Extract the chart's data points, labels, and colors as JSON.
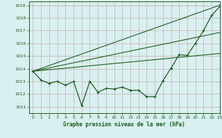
{
  "title": "Graphe pression niveau de la mer (hPa)",
  "bg_color": "#d8f0f0",
  "grid_color": "#c8b8b8",
  "line_color": "#1a5c1a",
  "xlim": [
    -0.5,
    23
  ],
  "ylim": [
    1010.5,
    1019.3
  ],
  "yticks": [
    1011,
    1012,
    1013,
    1014,
    1015,
    1016,
    1017,
    1018,
    1019
  ],
  "xticks": [
    0,
    1,
    2,
    3,
    4,
    5,
    6,
    7,
    8,
    9,
    10,
    11,
    12,
    13,
    14,
    15,
    16,
    17,
    18,
    19,
    20,
    21,
    22,
    23
  ],
  "series_main": {
    "x": [
      0,
      1,
      2,
      3,
      4,
      5,
      6,
      7,
      8,
      9,
      10,
      11,
      12,
      13,
      14,
      15,
      16,
      17,
      18,
      19,
      20,
      21,
      22,
      23
    ],
    "y": [
      1013.8,
      1013.1,
      1012.85,
      1013.0,
      1012.7,
      1013.0,
      1011.1,
      1013.0,
      1012.15,
      1012.45,
      1012.4,
      1012.55,
      1012.3,
      1012.3,
      1011.8,
      1011.8,
      1013.05,
      1014.05,
      1015.1,
      1015.05,
      1016.0,
      1017.0,
      1018.2,
      1018.9
    ]
  },
  "trend_lines": [
    {
      "x": [
        0,
        23
      ],
      "y": [
        1013.8,
        1019.0
      ]
    },
    {
      "x": [
        0,
        23
      ],
      "y": [
        1013.8,
        1015.2
      ]
    },
    {
      "x": [
        0,
        23
      ],
      "y": [
        1013.8,
        1016.85
      ]
    }
  ]
}
